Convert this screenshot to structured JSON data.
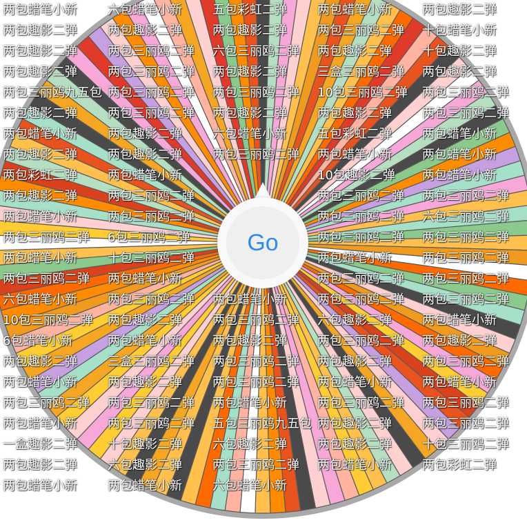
{
  "wheel": {
    "rim_color": "#a9a9a9",
    "divider_color": "#5a5a5a",
    "palette": [
      "#ff8c00",
      "#e8531e",
      "#f7a8d8",
      "#8cc98c",
      "#ffd0d0",
      "#ff6a00",
      "#d9421c",
      "#ffc04d",
      "#4a4a4a",
      "#f09a1f",
      "#b5dfc0",
      "#ffb3a0",
      "#ffffff",
      "#ffcc33",
      "#e03a2a",
      "#f5a623",
      "#c6a0e0",
      "#a7e0c8"
    ],
    "segments": [
      "两包蜡笔小新",
      "六包蜡笔小新",
      "五包彩虹二弹",
      "两包蜡笔小新",
      "两包趣影二弹",
      "两包趣影二弹",
      "两包趣影二弹",
      "两包趣影二弹",
      "两包三丽鸥二弹",
      "十包蜡笔小新",
      "两包趣影二弹",
      "两包三丽鸥二弹",
      "六包三丽鸥二弹",
      "两包趣影二弹",
      "十包趣影二弹",
      "两包趣影二弹",
      "两包三丽鸥二弹",
      "两包趣影二弹",
      "三盒三丽鸥二弹",
      "两包趣影二弹",
      "两包三丽鸥九五包",
      "两包三丽鸥二弹",
      "两包三丽鸥二弹",
      "10包三丽鸥二弹",
      "两包三丽鸥二弹",
      "两包趣影二弹",
      "两包三丽鸥二弹",
      "两包趣影二弹",
      "两包趣影二弹",
      "两包三丽鸥二弹",
      "两包蜡笔小新",
      "两包趣影二弹",
      "六包蜡笔小新",
      "五包彩虹二弹",
      "两包蜡笔小新",
      "两包趣影二弹",
      "两包趣影二弹",
      "两包三丽鸥二弹",
      "两包蜡笔小新",
      "两包蜡笔小新",
      "两包彩虹二弹",
      "两包蜡笔小新",
      "10包趣影二弹",
      "两包蜡笔小新",
      "两包趣影二弹",
      "两包三丽鸥二弹",
      "两包三丽鸥二弹",
      "两包三丽鸥二弹",
      "两包蜡笔小新",
      "两包三丽鸥二弹",
      "两包三丽鸥二弹",
      "六包三丽鸥二弹",
      "两包三丽鸥二弹",
      "6包三丽鸥二弹",
      "两包三丽鸥二弹",
      "两包三丽鸥二弹",
      "两包蜡笔小新",
      "十包三丽鸥二弹",
      "两包蜡笔小新",
      "两包三丽鸥二弹",
      "两包三丽鸥二弹",
      "两包蜡笔小新",
      "两包三丽鸥二弹",
      "两包三丽鸥二弹",
      "六包蜡笔小新",
      "两包三丽鸥二弹",
      "两包蜡笔小新",
      "两包三丽鸥二弹",
      "两包三丽鸥二弹",
      "10包三丽鸥二弹",
      "两包趣影二弹",
      "两包三丽鸥二弹",
      "六包趣影二弹",
      "两包蜡笔小新",
      "6包蜡笔小新",
      "两包蜡笔小新",
      "两包趣影二弹",
      "两包三丽鸥二弹",
      "两包趣影二弹",
      "两包趣影二弹",
      "三盒三丽鸥二弹",
      "两包三丽鸥二弹",
      "两包趣影二弹",
      "两包三丽鸥二弹",
      "两包蜡笔小新",
      "两包趣影二弹",
      "两包三丽鸥二弹",
      "两包蜡笔小新",
      "两包蜡笔小新",
      "两包三丽鸥二弹",
      "两包三丽鸥二弹",
      "两包蜡笔小新",
      "两包三丽鸥二弹",
      "两包三丽鸥二弹",
      "两包蜡笔小新",
      "两包三丽鸥二弹",
      "五包三丽鸥九五包",
      "两包趣影二弹",
      "两包三丽鸥二弹",
      "一盒趣影二弹",
      "十包趣影二弹",
      "六包趣影二弹",
      "两包趣影二弹",
      "十包三丽鸥二弹",
      "两包趣影二弹",
      "六包趣影二弹",
      "两包三丽鸥二弹",
      "两包蜡笔小新",
      "两包彩虹二弹",
      "两包蜡笔小新",
      "两包蜡笔小新",
      "六包蜡笔小新"
    ]
  },
  "go_button": {
    "label": "Go",
    "color": "#2d8cf0"
  }
}
